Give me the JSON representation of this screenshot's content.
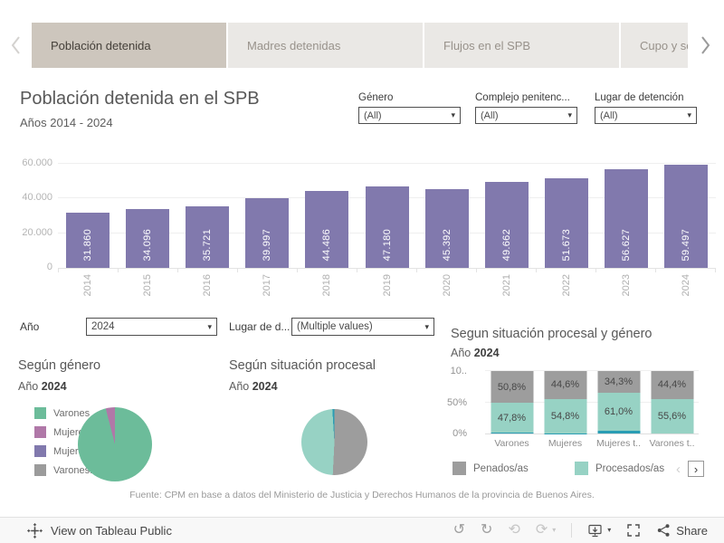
{
  "tabs": {
    "items": [
      {
        "label": "Población detenida",
        "active": true
      },
      {
        "label": "Madres detenidas",
        "active": false
      },
      {
        "label": "Flujos en el SPB",
        "active": false
      },
      {
        "label": "Cupo y sob",
        "active": false
      }
    ]
  },
  "header": {
    "title": "Población detenida en el SPB",
    "subtitle": "Años 2014 - 2024"
  },
  "filters_top": [
    {
      "label": "Género",
      "value": "(All)"
    },
    {
      "label": "Complejo penitenc...",
      "value": "(All)"
    },
    {
      "label": "Lugar de detención",
      "value": "(All)"
    }
  ],
  "filters_mid": [
    {
      "label": "Año",
      "value": "2024"
    },
    {
      "label": "Lugar de d...",
      "value": "(Multiple values)"
    }
  ],
  "chart_data": [
    {
      "id": "poblacion-detenida-anual",
      "type": "bar",
      "title": "Población detenida en el SPB",
      "subtitle": "Años 2014 - 2024",
      "categories": [
        "2014",
        "2015",
        "2016",
        "2017",
        "2018",
        "2019",
        "2020",
        "2021",
        "2022",
        "2023",
        "2024"
      ],
      "values": [
        31860,
        34096,
        35721,
        39997,
        44486,
        47180,
        45392,
        49662,
        51673,
        56627,
        59497
      ],
      "value_labels": [
        "31.860",
        "34.096",
        "35.721",
        "39.997",
        "44.486",
        "47.180",
        "45.392",
        "49.662",
        "51.673",
        "56.627",
        "59.497"
      ],
      "ylim": [
        0,
        60000
      ],
      "yticks": [
        {
          "value": 0,
          "label": "0"
        },
        {
          "value": 20000,
          "label": "20.000"
        },
        {
          "value": 40000,
          "label": "40.000"
        },
        {
          "value": 60000,
          "label": "60.000"
        }
      ],
      "bar_color": "#8179ad",
      "grid": true,
      "legend_position": "none"
    },
    {
      "id": "segun-genero",
      "type": "pie",
      "title": "Según género",
      "subtitle_prefix": "Año",
      "subtitle_year": "2024",
      "legend_position": "left",
      "legend": [
        {
          "label": "Varones",
          "color": "#6cbc9a"
        },
        {
          "label": "Mujeres",
          "color": "#b078a8"
        },
        {
          "label": "Mujeres...",
          "color": "#8179ad"
        },
        {
          "label": "Varones...",
          "color": "#9b9b9b"
        }
      ],
      "slices": [
        {
          "color": "#6cbc9a",
          "pct": 96
        },
        {
          "color": "#b078a8",
          "pct": 4
        }
      ]
    },
    {
      "id": "segun-situacion-procesal",
      "type": "pie",
      "title": "Según situación procesal",
      "subtitle_prefix": "Año",
      "subtitle_year": "2024",
      "legend_position": "none",
      "slices": [
        {
          "color": "#9d9d9d",
          "pct": 50.8
        },
        {
          "color": "#97d2c4",
          "pct": 48.2
        },
        {
          "color": "#2a9db4",
          "pct": 1.0
        }
      ]
    },
    {
      "id": "situacion-procesal-y-genero",
      "type": "bar",
      "stacked": true,
      "title": "Segun situación procesal y género",
      "subtitle_prefix": "Año",
      "subtitle_year": "2024",
      "categories": [
        "Varones",
        "Mujeres",
        "Mujeres t..",
        "Varones t.."
      ],
      "series": [
        {
          "name": "Penados/as",
          "color": "#9d9d9d",
          "values": [
            50.8,
            44.6,
            34.3,
            44.4
          ],
          "labels": [
            "50,8%",
            "44,6%",
            "34,3%",
            "44,4%"
          ]
        },
        {
          "name": "Procesados/as",
          "color": "#97d2c4",
          "values": [
            47.8,
            54.8,
            61.0,
            55.6
          ],
          "labels": [
            "47,8%",
            "54,8%",
            "61,0%",
            "55,6%"
          ]
        },
        {
          "name": "",
          "color": "#2a9db4",
          "values": [
            1.4,
            0.6,
            4.7,
            0.0
          ],
          "labels": [
            "",
            "",
            "",
            ""
          ]
        }
      ],
      "ylim": [
        0,
        100
      ],
      "yticks": [
        {
          "value": 0,
          "label": "0%"
        },
        {
          "value": 50,
          "label": "50%"
        },
        {
          "value": 100,
          "label": "10.."
        }
      ],
      "legend_position": "bottom",
      "legend": [
        {
          "label": "Penados/as",
          "color": "#9d9d9d"
        },
        {
          "label": "Procesados/as",
          "color": "#97d2c4"
        }
      ]
    }
  ],
  "footer": {
    "source": "Fuente: CPM en base a datos del Ministerio de Justicia y Derechos Humanos de la provincia de Buenos Aires."
  },
  "bottom_bar": {
    "view_label": "View on Tableau Public",
    "share_label": "Share"
  }
}
